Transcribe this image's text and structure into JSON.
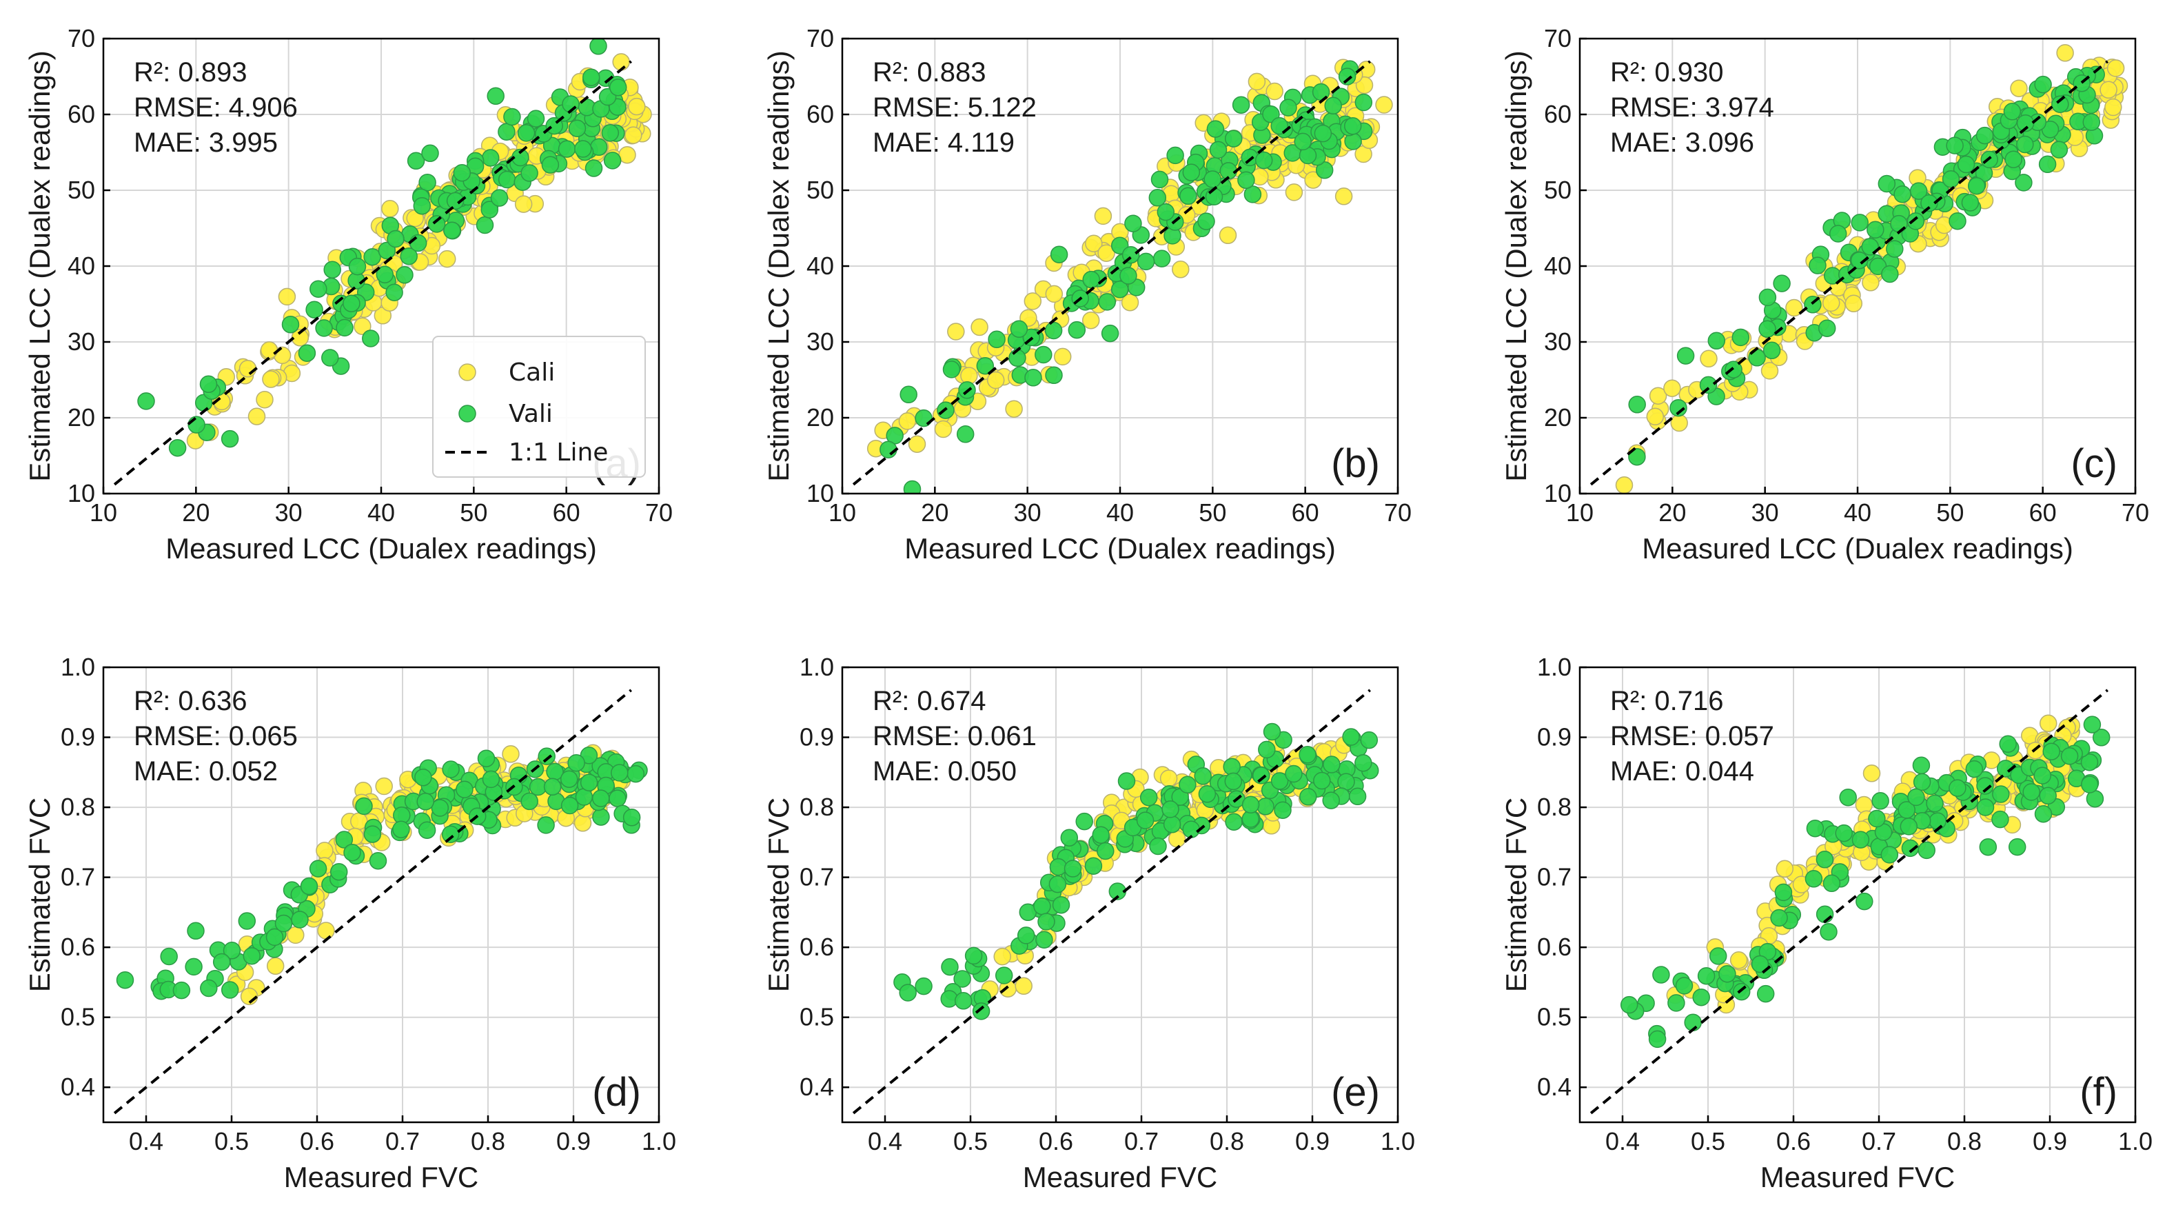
{
  "figure": {
    "legend": {
      "cali": "Cali",
      "vali": "Vali",
      "line": "1:1 Line"
    },
    "colors": {
      "cali": "#ffee3a",
      "vali": "#2fd34f",
      "line": "#000000"
    }
  },
  "chart_data": [
    {
      "id": "a",
      "type": "scatter",
      "tag": "(a)",
      "xlabel": "Measured LCC (Dualex readings)",
      "ylabel": "Estimated LCC (Dualex readings)",
      "xlim": [
        10,
        70
      ],
      "ylim": [
        10,
        70
      ],
      "ticks": [
        10,
        20,
        30,
        40,
        50,
        60,
        70
      ],
      "tick_labels": [
        "10",
        "20",
        "30",
        "40",
        "50",
        "60",
        "70"
      ],
      "metrics": [
        "R²: 0.893",
        "RMSE: 4.906",
        "MAE: 3.995"
      ],
      "legend": true,
      "trend": {
        "cali": [
          [
            12,
            17
          ],
          [
            20,
            20
          ],
          [
            30,
            29
          ],
          [
            40,
            40
          ],
          [
            50,
            51
          ],
          [
            60,
            58
          ],
          [
            68,
            60
          ]
        ],
        "vali": [
          [
            12,
            18
          ],
          [
            20,
            21
          ],
          [
            30,
            30
          ],
          [
            40,
            40
          ],
          [
            50,
            52
          ],
          [
            60,
            58
          ],
          [
            66,
            61
          ]
        ]
      },
      "spread": {
        "cali": 3.0,
        "vali": 3.2
      },
      "n": {
        "cali": 220,
        "vali": 130
      },
      "seed": 11
    },
    {
      "id": "b",
      "type": "scatter",
      "tag": "(b)",
      "xlabel": "Measured LCC (Dualex readings)",
      "ylabel": "Estimated LCC (Dualex readings)",
      "xlim": [
        10,
        70
      ],
      "ylim": [
        10,
        70
      ],
      "ticks": [
        10,
        20,
        30,
        40,
        50,
        60,
        70
      ],
      "tick_labels": [
        "10",
        "20",
        "30",
        "40",
        "50",
        "60",
        "70"
      ],
      "metrics": [
        "R²: 0.883",
        "RMSE: 5.122",
        "MAE: 4.119"
      ],
      "legend": false,
      "trend": {
        "cali": [
          [
            12,
            16
          ],
          [
            20,
            21
          ],
          [
            30,
            31
          ],
          [
            40,
            40
          ],
          [
            50,
            53
          ],
          [
            60,
            57
          ],
          [
            68,
            59
          ]
        ],
        "vali": [
          [
            12,
            16
          ],
          [
            20,
            21
          ],
          [
            30,
            30
          ],
          [
            40,
            39
          ],
          [
            50,
            53
          ],
          [
            60,
            57
          ],
          [
            67,
            59
          ]
        ]
      },
      "spread": {
        "cali": 3.3,
        "vali": 3.5
      },
      "n": {
        "cali": 220,
        "vali": 130
      },
      "seed": 23
    },
    {
      "id": "c",
      "type": "scatter",
      "tag": "(c)",
      "xlabel": "Measured LCC (Dualex readings)",
      "ylabel": "Estimated LCC (Dualex readings)",
      "xlim": [
        10,
        70
      ],
      "ylim": [
        10,
        70
      ],
      "ticks": [
        10,
        20,
        30,
        40,
        50,
        60,
        70
      ],
      "tick_labels": [
        "10",
        "20",
        "30",
        "40",
        "50",
        "60",
        "70"
      ],
      "metrics": [
        "R²: 0.930",
        "RMSE: 3.974",
        "MAE: 3.096"
      ],
      "legend": false,
      "trend": {
        "cali": [
          [
            12,
            17
          ],
          [
            20,
            20
          ],
          [
            30,
            30
          ],
          [
            40,
            40
          ],
          [
            50,
            51
          ],
          [
            60,
            59
          ],
          [
            68,
            63
          ]
        ],
        "vali": [
          [
            12,
            17
          ],
          [
            20,
            21
          ],
          [
            30,
            31
          ],
          [
            40,
            41
          ],
          [
            50,
            51
          ],
          [
            60,
            59
          ],
          [
            67,
            64
          ]
        ]
      },
      "spread": {
        "cali": 2.6,
        "vali": 2.9
      },
      "n": {
        "cali": 220,
        "vali": 130
      },
      "seed": 37
    },
    {
      "id": "d",
      "type": "scatter",
      "tag": "(d)",
      "xlabel": "Measured FVC",
      "ylabel": "Estimated FVC",
      "xlim": [
        0.35,
        1.0
      ],
      "ylim": [
        0.35,
        1.0
      ],
      "ticks": [
        0.4,
        0.5,
        0.6,
        0.7,
        0.8,
        0.9,
        1.0
      ],
      "tick_labels": [
        "0.4",
        "0.5",
        "0.6",
        "0.7",
        "0.8",
        "0.9",
        "1.0"
      ],
      "metrics": [
        "R²: 0.636",
        "RMSE: 0.065",
        "MAE: 0.052"
      ],
      "legend": false,
      "trend": {
        "cali": [
          [
            0.46,
            0.54
          ],
          [
            0.55,
            0.58
          ],
          [
            0.6,
            0.68
          ],
          [
            0.65,
            0.76
          ],
          [
            0.7,
            0.8
          ],
          [
            0.8,
            0.82
          ],
          [
            0.95,
            0.83
          ]
        ],
        "vali": [
          [
            0.35,
            0.57
          ],
          [
            0.45,
            0.56
          ],
          [
            0.55,
            0.6
          ],
          [
            0.62,
            0.72
          ],
          [
            0.7,
            0.8
          ],
          [
            0.8,
            0.82
          ],
          [
            0.97,
            0.84
          ]
        ]
      },
      "spread": {
        "cali": 0.025,
        "vali": 0.028
      },
      "n": {
        "cali": 190,
        "vali": 140
      },
      "seed": 41
    },
    {
      "id": "e",
      "type": "scatter",
      "tag": "(e)",
      "xlabel": "Measured FVC",
      "ylabel": "Estimated FVC",
      "xlim": [
        0.35,
        1.0
      ],
      "ylim": [
        0.35,
        1.0
      ],
      "ticks": [
        0.4,
        0.5,
        0.6,
        0.7,
        0.8,
        0.9,
        1.0
      ],
      "tick_labels": [
        "0.4",
        "0.5",
        "0.6",
        "0.7",
        "0.8",
        "0.9",
        "1.0"
      ],
      "metrics": [
        "R²: 0.674",
        "RMSE: 0.061",
        "MAE: 0.050"
      ],
      "legend": false,
      "trend": {
        "cali": [
          [
            0.46,
            0.5
          ],
          [
            0.55,
            0.56
          ],
          [
            0.6,
            0.68
          ],
          [
            0.65,
            0.75
          ],
          [
            0.7,
            0.79
          ],
          [
            0.8,
            0.82
          ],
          [
            0.93,
            0.85
          ]
        ],
        "vali": [
          [
            0.35,
            0.54
          ],
          [
            0.45,
            0.55
          ],
          [
            0.55,
            0.58
          ],
          [
            0.62,
            0.72
          ],
          [
            0.7,
            0.78
          ],
          [
            0.8,
            0.82
          ],
          [
            0.97,
            0.85
          ]
        ]
      },
      "spread": {
        "cali": 0.025,
        "vali": 0.03
      },
      "n": {
        "cali": 190,
        "vali": 140
      },
      "seed": 53
    },
    {
      "id": "f",
      "type": "scatter",
      "tag": "(f)",
      "xlabel": "Measured FVC",
      "ylabel": "Estimated FVC",
      "xlim": [
        0.35,
        1.0
      ],
      "ylim": [
        0.35,
        1.0
      ],
      "ticks": [
        0.4,
        0.5,
        0.6,
        0.7,
        0.8,
        0.9,
        1.0
      ],
      "tick_labels": [
        "0.4",
        "0.5",
        "0.6",
        "0.7",
        "0.8",
        "0.9",
        "1.0"
      ],
      "metrics": [
        "R²: 0.716",
        "RMSE: 0.057",
        "MAE: 0.044"
      ],
      "legend": false,
      "trend": {
        "cali": [
          [
            0.46,
            0.53
          ],
          [
            0.55,
            0.57
          ],
          [
            0.6,
            0.68
          ],
          [
            0.65,
            0.73
          ],
          [
            0.7,
            0.77
          ],
          [
            0.8,
            0.81
          ],
          [
            0.93,
            0.87
          ]
        ],
        "vali": [
          [
            0.35,
            0.55
          ],
          [
            0.45,
            0.52
          ],
          [
            0.55,
            0.55
          ],
          [
            0.62,
            0.7
          ],
          [
            0.7,
            0.76
          ],
          [
            0.8,
            0.82
          ],
          [
            0.97,
            0.86
          ]
        ]
      },
      "spread": {
        "cali": 0.025,
        "vali": 0.03
      },
      "n": {
        "cali": 190,
        "vali": 140
      },
      "seed": 67
    }
  ]
}
